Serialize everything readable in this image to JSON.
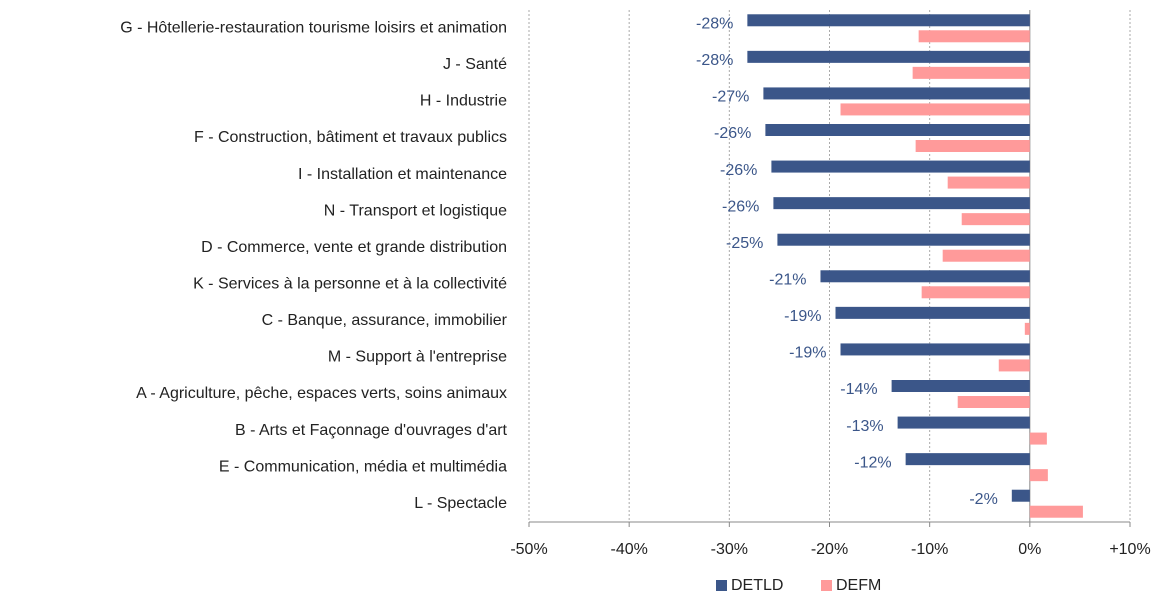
{
  "chart_data": {
    "type": "hbar",
    "categories": [
      "G - Hôtellerie-restauration tourisme loisirs et animation",
      "J - Santé",
      "H - Industrie",
      "F - Construction, bâtiment et travaux publics",
      "I - Installation et maintenance",
      "N - Transport et logistique",
      "D - Commerce, vente et grande distribution",
      "K - Services à la personne et à la collectivité",
      "C - Banque, assurance, immobilier",
      "M - Support à l'entreprise",
      "A - Agriculture, pêche, espaces verts, soins animaux",
      "B - Arts et Façonnage d'ouvrages d'art",
      "E - Communication, média et multimédia",
      "L - Spectacle"
    ],
    "series": [
      {
        "name": "DETLD",
        "color": "#3b5689",
        "values": [
          -28.2,
          -28.2,
          -26.6,
          -26.4,
          -25.8,
          -25.6,
          -25.2,
          -20.9,
          -19.4,
          -18.9,
          -13.8,
          -13.2,
          -12.4,
          -1.8
        ],
        "value_labels": [
          "-28%",
          "-28%",
          "-27%",
          "-26%",
          "-26%",
          "-26%",
          "-25%",
          "-21%",
          "-19%",
          "-19%",
          "-14%",
          "-13%",
          "-12%",
          "-2%"
        ]
      },
      {
        "name": "DEFM",
        "color": "#ff9a9a",
        "values": [
          -11.1,
          -11.7,
          -18.9,
          -11.4,
          -8.2,
          -6.8,
          -8.7,
          -10.8,
          -0.5,
          -3.1,
          -7.2,
          1.7,
          1.8,
          5.3
        ]
      }
    ],
    "xlim": [
      -50,
      10
    ],
    "xticks": [
      {
        "value": -50,
        "label": "-50%"
      },
      {
        "value": -40,
        "label": "-40%"
      },
      {
        "value": -30,
        "label": "-30%"
      },
      {
        "value": -20,
        "label": "-20%"
      },
      {
        "value": -10,
        "label": "-10%"
      },
      {
        "value": 0,
        "label": "0%"
      },
      {
        "value": 10,
        "label": "+10%"
      }
    ],
    "grid": true,
    "legend": "bottom"
  }
}
